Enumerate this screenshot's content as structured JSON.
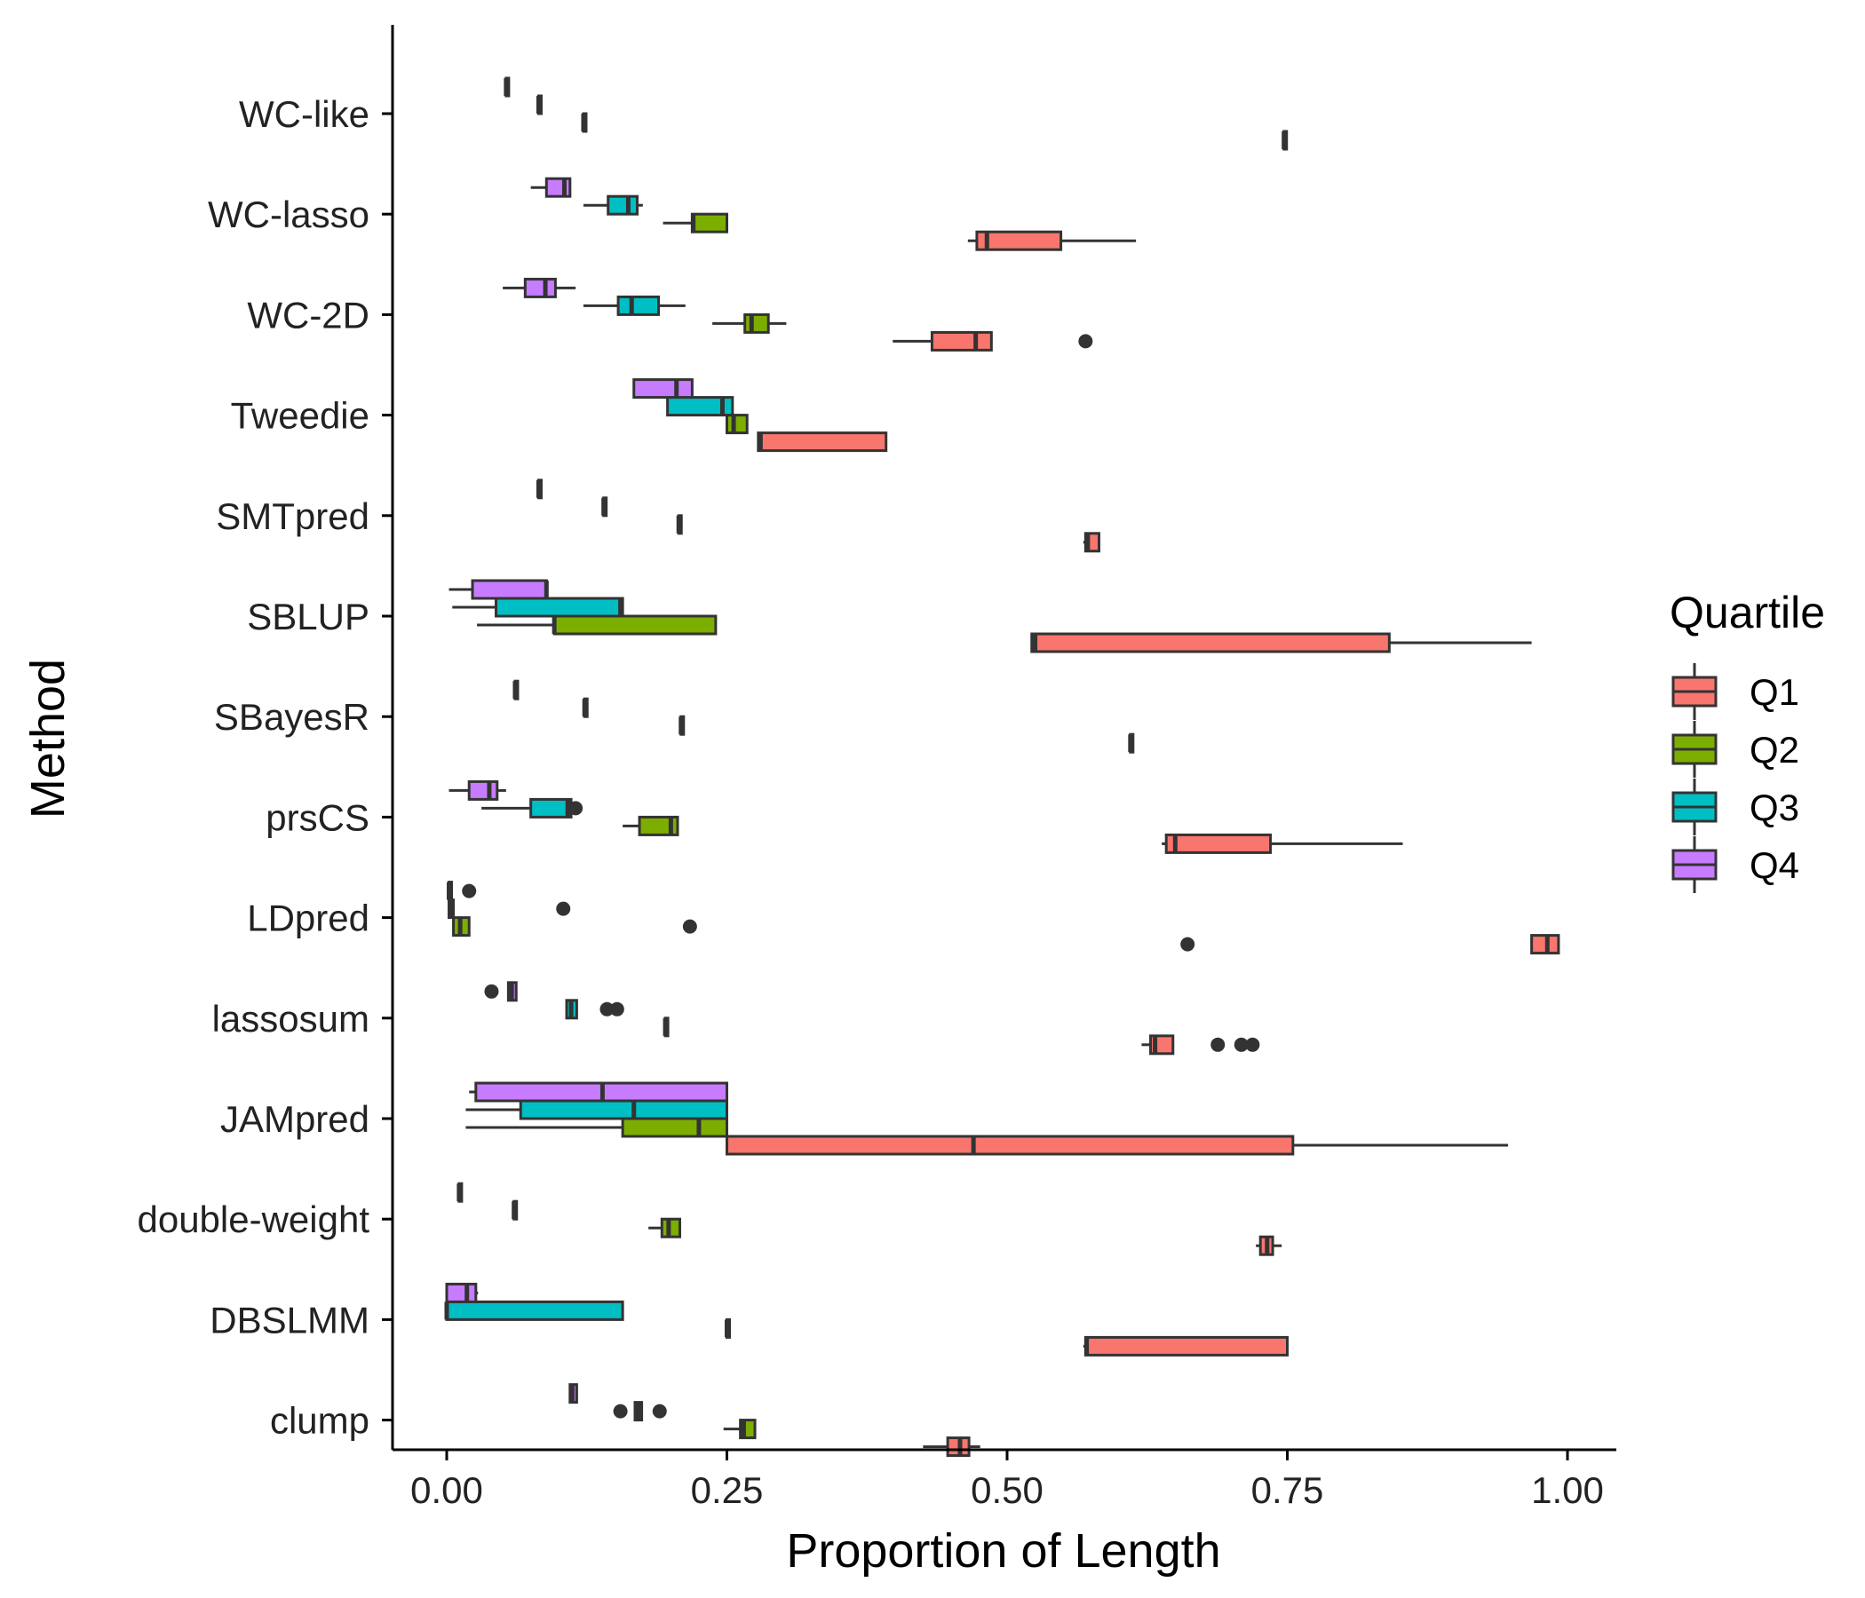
{
  "chart_data": {
    "type": "boxplot",
    "title": "",
    "xlabel": "Proportion of Length",
    "ylabel": "Method",
    "xlim": [
      -0.05,
      1.05
    ],
    "xticks": [
      0,
      0.25,
      0.5,
      0.75,
      1.0
    ],
    "xtick_labels": [
      "0.00",
      "0.25",
      "0.50",
      "0.75",
      "1.00"
    ],
    "grid": false,
    "categories": [
      "WC-like",
      "WC-lasso",
      "WC-2D",
      "Tweedie",
      "SMTpred",
      "SBLUP",
      "SBayesR",
      "prsCS",
      "LDpred",
      "lassosum",
      "JAMpred",
      "double-weight",
      "DBSLMM",
      "clump"
    ],
    "legend": {
      "title": "Quartile",
      "placement": "right",
      "entries": [
        "Q1",
        "Q2",
        "Q3",
        "Q4"
      ]
    },
    "colors": {
      "Q1": "#F8766D",
      "Q2": "#7CAE00",
      "Q3": "#00BFC4",
      "Q4": "#C77CFF",
      "outline": "#333333"
    },
    "series": [
      {
        "name": "Q1",
        "boxes": [
          {
            "method": "WC-like",
            "min": 0.747,
            "q1": 0.747,
            "median": 0.747,
            "q3": 0.747,
            "max": 0.747,
            "outliers": []
          },
          {
            "method": "WC-lasso",
            "min": 0.465,
            "q1": 0.473,
            "median": 0.482,
            "q3": 0.548,
            "max": 0.615,
            "outliers": []
          },
          {
            "method": "WC-2D",
            "min": 0.398,
            "q1": 0.433,
            "median": 0.472,
            "q3": 0.486,
            "max": 0.486,
            "outliers": [
              0.57
            ]
          },
          {
            "method": "Tweedie",
            "min": 0.278,
            "q1": 0.278,
            "median": 0.28,
            "q3": 0.392,
            "max": 0.392,
            "outliers": []
          },
          {
            "method": "SMTpred",
            "min": 0.568,
            "q1": 0.57,
            "median": 0.572,
            "q3": 0.582,
            "max": 0.582,
            "outliers": []
          },
          {
            "method": "SBLUP",
            "min": 0.522,
            "q1": 0.522,
            "median": 0.525,
            "q3": 0.841,
            "max": 0.968,
            "outliers": []
          },
          {
            "method": "SBayesR",
            "min": 0.61,
            "q1": 0.61,
            "median": 0.61,
            "q3": 0.61,
            "max": 0.61,
            "outliers": []
          },
          {
            "method": "prsCS",
            "min": 0.638,
            "q1": 0.642,
            "median": 0.65,
            "q3": 0.735,
            "max": 0.853,
            "outliers": []
          },
          {
            "method": "LDpred",
            "min": 0.968,
            "q1": 0.968,
            "median": 0.982,
            "q3": 0.992,
            "max": 0.992,
            "outliers": [
              0.661
            ]
          },
          {
            "method": "lassosum",
            "min": 0.62,
            "q1": 0.628,
            "median": 0.632,
            "q3": 0.648,
            "max": 0.648,
            "outliers": [
              0.688,
              0.709,
              0.719
            ]
          },
          {
            "method": "JAMpred",
            "min": 0.25,
            "q1": 0.25,
            "median": 0.47,
            "q3": 0.755,
            "max": 0.947,
            "outliers": []
          },
          {
            "method": "double-weight",
            "min": 0.722,
            "q1": 0.726,
            "median": 0.732,
            "q3": 0.737,
            "max": 0.745,
            "outliers": []
          },
          {
            "method": "DBSLMM",
            "min": 0.568,
            "q1": 0.57,
            "median": 0.571,
            "q3": 0.75,
            "max": 0.75,
            "outliers": []
          },
          {
            "method": "clump",
            "min": 0.425,
            "q1": 0.447,
            "median": 0.458,
            "q3": 0.466,
            "max": 0.476,
            "outliers": []
          }
        ]
      },
      {
        "name": "Q2",
        "boxes": [
          {
            "method": "WC-like",
            "min": 0.122,
            "q1": 0.122,
            "median": 0.122,
            "q3": 0.122,
            "max": 0.122,
            "outliers": []
          },
          {
            "method": "WC-lasso",
            "min": 0.193,
            "q1": 0.219,
            "median": 0.22,
            "q3": 0.25,
            "max": 0.25,
            "outliers": []
          },
          {
            "method": "WC-2D",
            "min": 0.237,
            "q1": 0.266,
            "median": 0.272,
            "q3": 0.287,
            "max": 0.303,
            "outliers": []
          },
          {
            "method": "Tweedie",
            "min": 0.25,
            "q1": 0.25,
            "median": 0.256,
            "q3": 0.268,
            "max": 0.268,
            "outliers": []
          },
          {
            "method": "SMTpred",
            "min": 0.207,
            "q1": 0.207,
            "median": 0.207,
            "q3": 0.207,
            "max": 0.207,
            "outliers": []
          },
          {
            "method": "SBLUP",
            "min": 0.027,
            "q1": 0.096,
            "median": 0.096,
            "q3": 0.24,
            "max": 0.24,
            "outliers": []
          },
          {
            "method": "SBayesR",
            "min": 0.209,
            "q1": 0.209,
            "median": 0.209,
            "q3": 0.209,
            "max": 0.209,
            "outliers": []
          },
          {
            "method": "prsCS",
            "min": 0.157,
            "q1": 0.172,
            "median": 0.2,
            "q3": 0.206,
            "max": 0.206,
            "outliers": []
          },
          {
            "method": "LDpred",
            "min": 0.005,
            "q1": 0.006,
            "median": 0.012,
            "q3": 0.02,
            "max": 0.02,
            "outliers": [
              0.217
            ]
          },
          {
            "method": "lassosum",
            "min": 0.195,
            "q1": 0.195,
            "median": 0.195,
            "q3": 0.195,
            "max": 0.195,
            "outliers": []
          },
          {
            "method": "JAMpred",
            "min": 0.017,
            "q1": 0.157,
            "median": 0.225,
            "q3": 0.25,
            "max": 0.25,
            "outliers": []
          },
          {
            "method": "double-weight",
            "min": 0.18,
            "q1": 0.192,
            "median": 0.198,
            "q3": 0.208,
            "max": 0.208,
            "outliers": []
          },
          {
            "method": "DBSLMM",
            "min": 0.25,
            "q1": 0.25,
            "median": 0.25,
            "q3": 0.25,
            "max": 0.25,
            "outliers": []
          },
          {
            "method": "clump",
            "min": 0.247,
            "q1": 0.262,
            "median": 0.265,
            "q3": 0.275,
            "max": 0.275,
            "outliers": []
          }
        ]
      },
      {
        "name": "Q3",
        "boxes": [
          {
            "method": "WC-like",
            "min": 0.082,
            "q1": 0.082,
            "median": 0.082,
            "q3": 0.082,
            "max": 0.082,
            "outliers": []
          },
          {
            "method": "WC-lasso",
            "min": 0.122,
            "q1": 0.144,
            "median": 0.162,
            "q3": 0.17,
            "max": 0.175,
            "outliers": []
          },
          {
            "method": "WC-2D",
            "min": 0.122,
            "q1": 0.153,
            "median": 0.165,
            "q3": 0.189,
            "max": 0.213,
            "outliers": []
          },
          {
            "method": "Tweedie",
            "min": 0.197,
            "q1": 0.197,
            "median": 0.246,
            "q3": 0.255,
            "max": 0.255,
            "outliers": []
          },
          {
            "method": "SMTpred",
            "min": 0.14,
            "q1": 0.14,
            "median": 0.14,
            "q3": 0.14,
            "max": 0.14,
            "outliers": []
          },
          {
            "method": "SBLUP",
            "min": 0.005,
            "q1": 0.044,
            "median": 0.155,
            "q3": 0.157,
            "max": 0.157,
            "outliers": []
          },
          {
            "method": "SBayesR",
            "min": 0.123,
            "q1": 0.123,
            "median": 0.123,
            "q3": 0.123,
            "max": 0.123,
            "outliers": []
          },
          {
            "method": "prsCS",
            "min": 0.031,
            "q1": 0.075,
            "median": 0.108,
            "q3": 0.111,
            "max": 0.111,
            "outliers": [
              0.115
            ]
          },
          {
            "method": "LDpred",
            "min": 0.002,
            "q1": 0.002,
            "median": 0.004,
            "q3": 0.006,
            "max": 0.006,
            "outliers": [
              0.104
            ]
          },
          {
            "method": "lassosum",
            "min": 0.107,
            "q1": 0.107,
            "median": 0.111,
            "q3": 0.116,
            "max": 0.116,
            "outliers": [
              0.143,
              0.152
            ]
          },
          {
            "method": "JAMpred",
            "min": 0.017,
            "q1": 0.066,
            "median": 0.167,
            "q3": 0.25,
            "max": 0.25,
            "outliers": []
          },
          {
            "method": "double-weight",
            "min": 0.06,
            "q1": 0.06,
            "median": 0.06,
            "q3": 0.06,
            "max": 0.06,
            "outliers": []
          },
          {
            "method": "DBSLMM",
            "min": 0.0,
            "q1": 0.0,
            "median": 0.0,
            "q3": 0.157,
            "max": 0.157,
            "outliers": []
          },
          {
            "method": "clump",
            "min": 0.168,
            "q1": 0.168,
            "median": 0.171,
            "q3": 0.174,
            "max": 0.174,
            "outliers": [
              0.155,
              0.19
            ]
          }
        ]
      },
      {
        "name": "Q4",
        "boxes": [
          {
            "method": "WC-like",
            "min": 0.053,
            "q1": 0.053,
            "median": 0.053,
            "q3": 0.053,
            "max": 0.053,
            "outliers": []
          },
          {
            "method": "WC-lasso",
            "min": 0.075,
            "q1": 0.089,
            "median": 0.105,
            "q3": 0.11,
            "max": 0.11,
            "outliers": []
          },
          {
            "method": "WC-2D",
            "min": 0.05,
            "q1": 0.07,
            "median": 0.088,
            "q3": 0.097,
            "max": 0.115,
            "outliers": []
          },
          {
            "method": "Tweedie",
            "min": 0.167,
            "q1": 0.167,
            "median": 0.205,
            "q3": 0.219,
            "max": 0.219,
            "outliers": []
          },
          {
            "method": "SMTpred",
            "min": 0.082,
            "q1": 0.082,
            "median": 0.082,
            "q3": 0.082,
            "max": 0.082,
            "outliers": []
          },
          {
            "method": "SBLUP",
            "min": 0.002,
            "q1": 0.023,
            "median": 0.089,
            "q3": 0.089,
            "max": 0.089,
            "outliers": []
          },
          {
            "method": "SBayesR",
            "min": 0.061,
            "q1": 0.061,
            "median": 0.061,
            "q3": 0.061,
            "max": 0.061,
            "outliers": []
          },
          {
            "method": "prsCS",
            "min": 0.002,
            "q1": 0.02,
            "median": 0.038,
            "q3": 0.045,
            "max": 0.053,
            "outliers": []
          },
          {
            "method": "LDpred",
            "min": 0.002,
            "q1": 0.002,
            "median": 0.002,
            "q3": 0.002,
            "max": 0.002,
            "outliers": [
              0.02
            ]
          },
          {
            "method": "lassosum",
            "min": 0.055,
            "q1": 0.055,
            "median": 0.058,
            "q3": 0.062,
            "max": 0.062,
            "outliers": [
              0.04
            ]
          },
          {
            "method": "JAMpred",
            "min": 0.02,
            "q1": 0.026,
            "median": 0.139,
            "q3": 0.25,
            "max": 0.25,
            "outliers": []
          },
          {
            "method": "double-weight",
            "min": 0.011,
            "q1": 0.011,
            "median": 0.011,
            "q3": 0.011,
            "max": 0.011,
            "outliers": []
          },
          {
            "method": "DBSLMM",
            "min": 0.0,
            "q1": 0.0,
            "median": 0.018,
            "q3": 0.026,
            "max": 0.028,
            "outliers": []
          },
          {
            "method": "clump",
            "min": 0.11,
            "q1": 0.11,
            "median": 0.112,
            "q3": 0.116,
            "max": 0.116,
            "outliers": []
          }
        ]
      }
    ]
  }
}
